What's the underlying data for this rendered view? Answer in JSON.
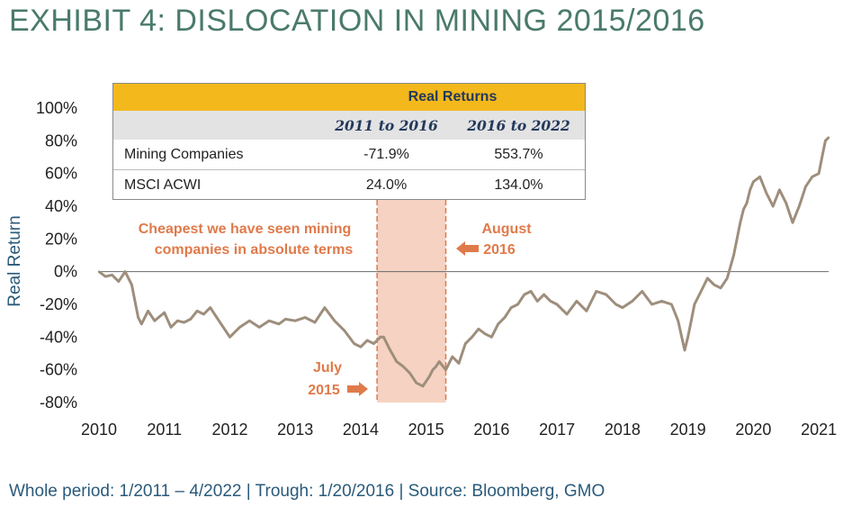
{
  "title": "EXHIBIT 4: DISLOCATION IN MINING 2015/2016",
  "footnote": "Whole period: 1/2011 – 4/2022 | Trough: 1/20/2016 | Source: Bloomberg, GMO",
  "table": {
    "title": "Real Returns",
    "columns": [
      "2011 to 2016",
      "2016 to 2022"
    ],
    "rows": [
      {
        "label": "Mining Companies",
        "values": [
          "-71.9%",
          "553.7%"
        ]
      },
      {
        "label": "MSCI ACWI",
        "values": [
          "24.0%",
          "134.0%"
        ]
      }
    ]
  },
  "annotations": {
    "cheapest_line1": "Cheapest we have seen mining",
    "cheapest_line2": "companies in absolute terms",
    "august_line1": "August",
    "august_line2": "2016",
    "july_line1": "July",
    "july_line2": "2015"
  },
  "colors": {
    "line": "#9e8e7c",
    "highlight_fill": "#f6d2c2",
    "highlight_border": "#e07a4a",
    "annotation": "#e07a4a",
    "title": "#4a7a6c",
    "axis_label": "#2a5a7a",
    "table_header": "#f3b81c",
    "table_subheader": "#e3e3e3"
  },
  "chart_data": {
    "type": "line",
    "title": "",
    "xlabel": "",
    "ylabel": "Real Return",
    "xlim": [
      2010,
      2021.15
    ],
    "ylim": [
      -80,
      100
    ],
    "yticks": [
      -80,
      -60,
      -40,
      -20,
      0,
      20,
      40,
      60,
      80,
      100
    ],
    "ytick_labels": [
      "-80%",
      "-60%",
      "-40%",
      "-20%",
      "0%",
      "20%",
      "40%",
      "60%",
      "80%",
      "100%"
    ],
    "xticks": [
      2010,
      2011,
      2012,
      2013,
      2014,
      2015,
      2016,
      2017,
      2018,
      2019,
      2020,
      2021
    ],
    "xtick_labels": [
      "2010",
      "2011",
      "2012",
      "2013",
      "2014",
      "2015",
      "2016",
      "2017",
      "2018",
      "2019",
      "2020",
      "2021"
    ],
    "grid": false,
    "legend": "none",
    "highlight_band": [
      2014.25,
      2015.3
    ],
    "series": [
      {
        "x": [
          2010.0,
          2010.1,
          2010.2,
          2010.3,
          2010.4,
          2010.5,
          2010.6,
          2010.65,
          2010.75,
          2010.85,
          2011.0,
          2011.1,
          2011.2,
          2011.3,
          2011.4,
          2011.5,
          2011.6,
          2011.7,
          2011.8,
          2011.9,
          2012.0,
          2012.15,
          2012.3,
          2012.45,
          2012.6,
          2012.75,
          2012.85,
          2013.0,
          2013.15,
          2013.3,
          2013.45,
          2013.6,
          2013.75,
          2013.9,
          2014.0,
          2014.1,
          2014.2,
          2014.3,
          2014.35,
          2014.45,
          2014.55,
          2014.65,
          2014.75,
          2014.85,
          2014.95,
          2015.05,
          2015.1,
          2015.15,
          2015.2,
          2015.3,
          2015.4,
          2015.5,
          2015.6,
          2015.7,
          2015.8,
          2015.9,
          2016.0,
          2016.1,
          2016.2,
          2016.3,
          2016.4,
          2016.5,
          2016.6,
          2016.7,
          2016.8,
          2016.9,
          2017.0,
          2017.15,
          2017.3,
          2017.45,
          2017.6,
          2017.75,
          2017.9,
          2018.0,
          2018.15,
          2018.3,
          2018.45,
          2018.6,
          2018.75,
          2018.85,
          2018.95,
          2019.0,
          2019.05,
          2019.1,
          2019.2,
          2019.3,
          2019.4,
          2019.5,
          2019.6,
          2019.7,
          2019.8,
          2019.85,
          2019.9,
          2019.95,
          2020.0,
          2020.1,
          2020.2,
          2020.3,
          2020.4,
          2020.5,
          2020.6,
          2020.7,
          2020.8,
          2020.9,
          2021.0,
          2021.05,
          2021.1,
          2021.15
        ],
        "y": [
          0,
          -3,
          -2,
          -6,
          0,
          -8,
          -28,
          -32,
          -24,
          -30,
          -25,
          -34,
          -30,
          -31,
          -29,
          -24,
          -26,
          -22,
          -28,
          -34,
          -40,
          -34,
          -30,
          -34,
          -30,
          -32,
          -29,
          -30,
          -28,
          -31,
          -22,
          -30,
          -36,
          -44,
          -46,
          -42,
          -44,
          -40,
          -40,
          -48,
          -55,
          -58,
          -62,
          -68,
          -70,
          -64,
          -60,
          -58,
          -55,
          -60,
          -52,
          -56,
          -44,
          -40,
          -35,
          -38,
          -40,
          -32,
          -28,
          -22,
          -20,
          -14,
          -12,
          -18,
          -14,
          -18,
          -20,
          -26,
          -18,
          -24,
          -12,
          -14,
          -20,
          -22,
          -18,
          -12,
          -20,
          -18,
          -20,
          -30,
          -48,
          -40,
          -30,
          -20,
          -12,
          -4,
          -8,
          -10,
          -4,
          10,
          30,
          38,
          42,
          50,
          55,
          58,
          48,
          40,
          50,
          42,
          30,
          40,
          52,
          58,
          60,
          70,
          80,
          82
        ]
      }
    ]
  }
}
